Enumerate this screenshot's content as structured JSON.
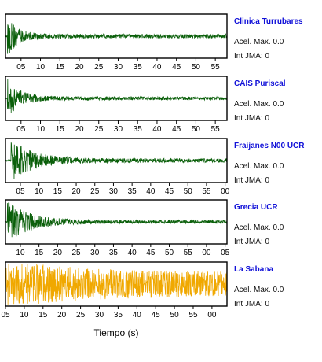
{
  "chart_data": {
    "type": "line",
    "xlabel": "Tiempo (s)",
    "grid": false,
    "panels": [
      {
        "station": "Clinica Turrubares",
        "acel_label": "Acel. Max. 0.0",
        "jma_label": "Int JMA: 0",
        "color": "#0a5f0a",
        "tick_labels": [
          "05",
          "10",
          "15",
          "20",
          "25",
          "30",
          "35",
          "40",
          "45",
          "50",
          "55"
        ],
        "x_range": [
          1,
          58
        ],
        "envelope": {
          "onset": 1.5,
          "peak_amplitude": 0.95,
          "decay_end": 10,
          "coda_amplitude": 0.1
        }
      },
      {
        "station": "CAIS Puriscal",
        "acel_label": "Acel. Max. 0.0",
        "jma_label": "Int JMA: 0",
        "color": "#0a5f0a",
        "tick_labels": [
          "05",
          "10",
          "15",
          "20",
          "25",
          "30",
          "35",
          "40",
          "45",
          "50",
          "55"
        ],
        "x_range": [
          1,
          58
        ],
        "envelope": {
          "onset": 1.5,
          "peak_amplitude": 0.9,
          "decay_end": 12,
          "coda_amplitude": 0.08
        }
      },
      {
        "station": "Fraijanes N00 UCR",
        "acel_label": "Acel. Max. 0.0",
        "jma_label": "Int JMA: 0",
        "color": "#0a5f0a",
        "tick_labels": [
          "05",
          "10",
          "15",
          "20",
          "25",
          "30",
          "35",
          "40",
          "45",
          "50",
          "55",
          "00"
        ],
        "x_range": [
          1,
          60.5
        ],
        "envelope": {
          "onset": 2.5,
          "peak_amplitude": 0.95,
          "decay_end": 22,
          "coda_amplitude": 0.1
        }
      },
      {
        "station": "Grecia UCR",
        "acel_label": "Acel. Max. 0.0",
        "jma_label": "Int JMA: 0",
        "color": "#0a5f0a",
        "tick_labels": [
          "10",
          "15",
          "20",
          "25",
          "30",
          "35",
          "40",
          "45",
          "50",
          "55",
          "00",
          "05"
        ],
        "x_range": [
          6,
          65.5
        ],
        "envelope": {
          "onset": 6.5,
          "peak_amplitude": 0.95,
          "decay_end": 26,
          "coda_amplitude": 0.08
        }
      },
      {
        "station": "La Sabana",
        "acel_label": "Acel. Max. 0.0",
        "jma_label": "Int JMA: 0",
        "color": "#f0a800",
        "tick_labels": [
          "05",
          "10",
          "15",
          "20",
          "25",
          "30",
          "35",
          "40",
          "45",
          "50",
          "55",
          "00"
        ],
        "x_range": [
          5,
          64
        ],
        "envelope": {
          "onset": 5,
          "peak_amplitude": 0.6,
          "decay_end": 64,
          "coda_amplitude": 0.6
        }
      }
    ]
  }
}
